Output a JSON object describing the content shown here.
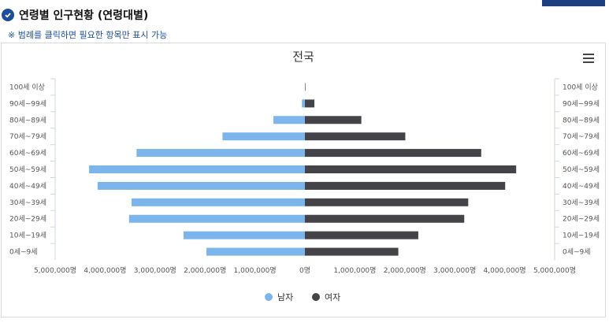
{
  "header": {
    "title": "연령별 인구현황 (연령대별)"
  },
  "note": "※ 범례를 클릭하면 필요한 항목만 표시 가능",
  "chart_data": {
    "type": "bar",
    "title": "전국",
    "orientation": "horizontal-population-pyramid",
    "categories": [
      "100세 이상",
      "90세~99세",
      "80세~89세",
      "70세~79세",
      "60세~69세",
      "50세~59세",
      "40세~49세",
      "30세~39세",
      "20세~29세",
      "10세~19세",
      "0세~9세"
    ],
    "series": [
      {
        "name": "남자",
        "color": "#7cb5ec",
        "values": [
          0,
          60000,
          630000,
          1650000,
          3370000,
          4320000,
          4150000,
          3470000,
          3520000,
          2430000,
          1970000
        ]
      },
      {
        "name": "여자",
        "color": "#434348",
        "values": [
          10000,
          190000,
          1130000,
          2010000,
          3530000,
          4230000,
          4010000,
          3270000,
          3190000,
          2270000,
          1870000
        ]
      }
    ],
    "xlim": [
      -5000000,
      5000000
    ],
    "x_ticks": [
      "5,000,000명",
      "4,000,000명",
      "3,000,000명",
      "2,000,000명",
      "1,000,000명",
      "0명",
      "1,000,000명",
      "2,000,000명",
      "3,000,000명",
      "4,000,000명",
      "5,000,000명"
    ],
    "legend_position": "bottom-center"
  },
  "colors": {
    "accent": "#1d4d9b"
  },
  "icons": {
    "header": "check-circle-icon",
    "menu": "hamburger-menu-icon"
  }
}
